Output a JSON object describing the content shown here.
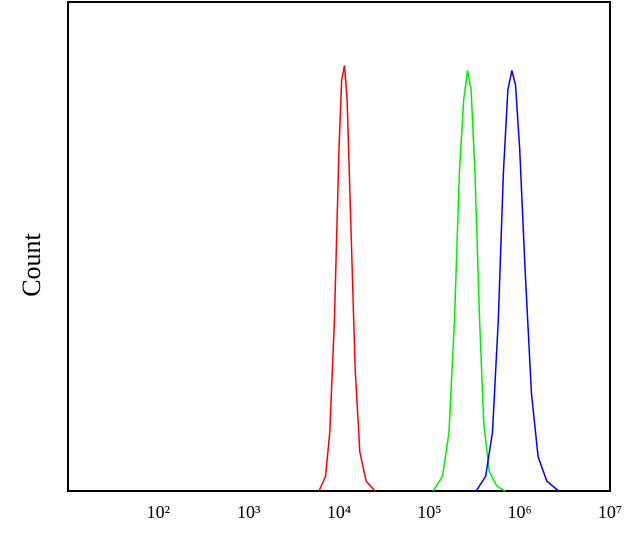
{
  "chart_data": {
    "type": "line",
    "y_label": "Count",
    "x_scale": "log",
    "xlim": [
      10,
      10000000
    ],
    "ylim": [
      0,
      100
    ],
    "xticks": [
      {
        "value": 100,
        "label": "10²"
      },
      {
        "value": 1000,
        "label": "10³"
      },
      {
        "value": 10000,
        "label": "10⁴"
      },
      {
        "value": 100000,
        "label": "10⁵"
      },
      {
        "value": 1000000,
        "label": "10⁶"
      },
      {
        "value": 10000000,
        "label": "10⁷"
      }
    ],
    "series": [
      {
        "color": "#ff0000",
        "x": [
          6000,
          7100,
          7900,
          8900,
          10000,
          10700,
          11500,
          12300,
          13500,
          15100,
          17000,
          20000,
          25100
        ],
        "values": [
          0,
          3,
          12,
          35,
          70,
          84,
          87,
          80,
          55,
          25,
          8,
          2,
          0
        ]
      },
      {
        "color": "#00ee00",
        "x": [
          110000,
          140000,
          165000,
          190000,
          215000,
          240000,
          265000,
          290000,
          320000,
          360000,
          400000,
          460000,
          560000,
          690000
        ],
        "values": [
          0,
          3,
          12,
          35,
          65,
          80,
          86,
          82,
          65,
          35,
          14,
          4,
          1,
          0
        ]
      },
      {
        "color": "#0000ff",
        "x": [
          330000,
          420000,
          500000,
          580000,
          660000,
          740000,
          820000,
          900000,
          1000000,
          1150000,
          1350000,
          1600000,
          2000000,
          2700000
        ],
        "values": [
          0,
          3,
          12,
          35,
          65,
          82,
          86,
          83,
          70,
          45,
          20,
          7,
          2,
          0
        ]
      }
    ]
  }
}
